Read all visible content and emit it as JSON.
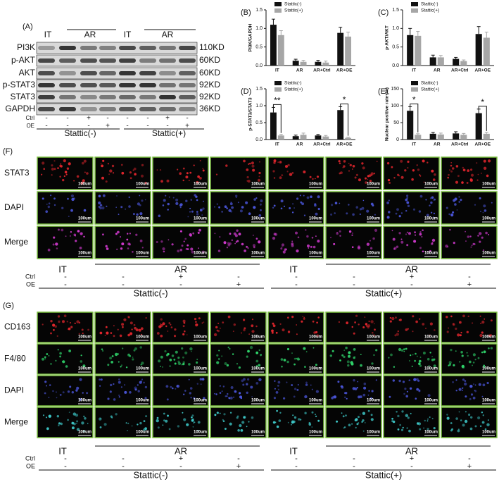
{
  "panel_a": {
    "label": "(A)",
    "header": [
      "IT",
      "AR",
      "IT",
      "AR"
    ],
    "proteins": [
      "PI3K",
      "p-AKT",
      "AKT",
      "p-STAT3",
      "STAT3",
      "GAPDH"
    ],
    "sizes": [
      "110KD",
      "60KD",
      "60KD",
      "92KD",
      "92KD",
      "36KD"
    ],
    "conditions": [
      {
        "name": "Ctrl",
        "marks": [
          "-",
          "-",
          "+",
          "-",
          "-",
          "-",
          "+",
          "-"
        ]
      },
      {
        "name": "OE",
        "marks": [
          "-",
          "-",
          "-",
          "+",
          "-",
          "-",
          "-",
          "+"
        ]
      }
    ],
    "groups": [
      "Stattic(-)",
      "Stattic(+)"
    ]
  },
  "charts": [
    {
      "type": "bar",
      "label": "(B)",
      "ylabel": "PI3K/GAPDH",
      "categories": [
        "IT",
        "AR",
        "AR+Ctrl",
        "AR+OE"
      ],
      "series": [
        {
          "name": "Stattic(-)",
          "color": "#111111",
          "values": [
            1.1,
            0.13,
            0.1,
            0.88
          ],
          "errors": [
            0.15,
            0.04,
            0.04,
            0.15
          ]
        },
        {
          "name": "Stattic(+)",
          "color": "#a6a6a6",
          "values": [
            0.82,
            0.1,
            0.08,
            0.78
          ],
          "errors": [
            0.12,
            0.04,
            0.04,
            0.12
          ]
        }
      ],
      "ylim": [
        0,
        1.5
      ],
      "yticks": [
        {
          "value": 0,
          "label": "0.0"
        },
        {
          "value": 0.5,
          "label": "0.5"
        },
        {
          "value": 1,
          "label": "1.0"
        },
        {
          "value": 1.5,
          "label": "1.5"
        }
      ]
    },
    {
      "type": "bar",
      "label": "(C)",
      "ylabel": "p-AKT/AKT",
      "categories": [
        "IT",
        "AR",
        "AR+Ctrl",
        "AR+OE"
      ],
      "series": [
        {
          "name": "Stattic(-)",
          "color": "#111111",
          "values": [
            0.82,
            0.22,
            0.18,
            0.85
          ],
          "errors": [
            0.18,
            0.06,
            0.04,
            0.2
          ]
        },
        {
          "name": "Stattic(+)",
          "color": "#a6a6a6",
          "values": [
            0.8,
            0.22,
            0.12,
            0.75
          ],
          "errors": [
            0.12,
            0.05,
            0.03,
            0.15
          ]
        }
      ],
      "ylim": [
        0,
        1.5
      ],
      "yticks": [
        {
          "value": 0,
          "label": "0.0"
        },
        {
          "value": 0.5,
          "label": "0.5"
        },
        {
          "value": 1,
          "label": "1.0"
        },
        {
          "value": 1.5,
          "label": "1.5"
        }
      ]
    },
    {
      "type": "bar",
      "label": "(D)",
      "ylabel": "p-STAT3/STAT3",
      "categories": [
        "IT",
        "AR",
        "AR+Ctrl",
        "AR+OE"
      ],
      "series": [
        {
          "name": "Stattic(-)",
          "color": "#111111",
          "values": [
            0.8,
            0.1,
            0.12,
            0.87
          ],
          "errors": [
            0.15,
            0.03,
            0.03,
            0.1
          ]
        },
        {
          "name": "Stattic(+)",
          "color": "#a6a6a6",
          "values": [
            0.12,
            0.14,
            0.09,
            0.05
          ],
          "errors": [
            0.03,
            0.05,
            0.03,
            0.02
          ]
        }
      ],
      "significance": [
        "**",
        null,
        null,
        "*"
      ],
      "ylim": [
        0,
        1.5
      ],
      "yticks": [
        {
          "value": 0,
          "label": "0.0"
        },
        {
          "value": 0.5,
          "label": "0.5"
        },
        {
          "value": 1,
          "label": "1.0"
        },
        {
          "value": 1.5,
          "label": "1.5"
        }
      ]
    },
    {
      "type": "bar",
      "label": "(E)",
      "ylabel": "Nuclear positive rate (%)",
      "categories": [
        "IT",
        "AR",
        "AR+Ctrl",
        "AR+OE"
      ],
      "series": [
        {
          "name": "Stattic(-)",
          "color": "#111111",
          "values": [
            85,
            17,
            18,
            78
          ],
          "errors": [
            12,
            4,
            5,
            12
          ]
        },
        {
          "name": "Stattic(+)",
          "color": "#a6a6a6",
          "values": [
            14,
            15,
            14,
            17
          ],
          "errors": [
            3,
            4,
            4,
            4
          ]
        }
      ],
      "significance": [
        "*",
        null,
        null,
        "*"
      ],
      "ylim": [
        0,
        150
      ],
      "yticks": [
        0,
        50,
        100,
        150
      ]
    }
  ],
  "panel_f": {
    "label": "(F)",
    "scale_bar": "100um",
    "rows": [
      {
        "name": "STAT3",
        "color": "#e3262d"
      },
      {
        "name": "DAPI",
        "color": "#4a55d8"
      },
      {
        "name": "Merge",
        "color": "#d23ad0"
      }
    ],
    "header": [
      "IT",
      "AR",
      "IT",
      "AR"
    ],
    "conditions": [
      {
        "name": "Ctrl",
        "marks": [
          "-",
          "-",
          "+",
          "-",
          "-",
          "-",
          "+",
          "-"
        ]
      },
      {
        "name": "OE",
        "marks": [
          "-",
          "-",
          "-",
          "+",
          "-",
          "-",
          "-",
          "+"
        ]
      }
    ],
    "groups": [
      "Stattic(-)",
      "Stattic(+)"
    ]
  },
  "panel_g": {
    "label": "(G)",
    "scale_bar": "100um",
    "rows": [
      {
        "name": "CD163",
        "color": "#e3262d"
      },
      {
        "name": "F4/80",
        "color": "#2fd36a"
      },
      {
        "name": "DAPI",
        "color": "#4a55d8"
      },
      {
        "name": "Merge",
        "color": "#3ec9c9"
      }
    ],
    "header": [
      "IT",
      "AR",
      "IT",
      "AR"
    ],
    "conditions": [
      {
        "name": "Ctrl",
        "marks": [
          "-",
          "-",
          "+",
          "-",
          "-",
          "-",
          "+",
          "-"
        ]
      },
      {
        "name": "OE",
        "marks": [
          "-",
          "-",
          "-",
          "+",
          "-",
          "-",
          "-",
          "+"
        ]
      }
    ],
    "groups": [
      "Stattic(-)",
      "Stattic(+)"
    ]
  }
}
